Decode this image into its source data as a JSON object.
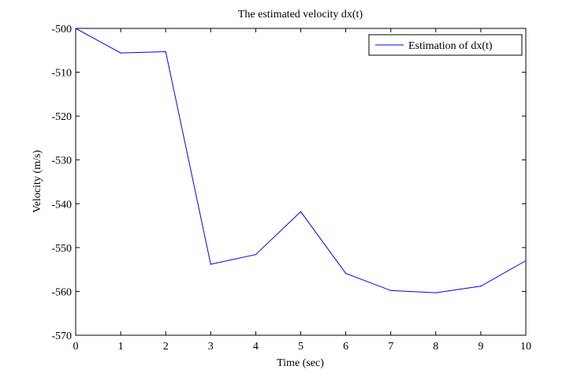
{
  "chart_data": {
    "type": "line",
    "title": "The estimated velocity dx(t)",
    "xlabel": "Time (sec)",
    "ylabel": "Velocity (m/s)",
    "xlim": [
      0,
      10
    ],
    "ylim": [
      -570,
      -500
    ],
    "xticks": [
      0,
      1,
      2,
      3,
      4,
      5,
      6,
      7,
      8,
      9,
      10
    ],
    "yticks": [
      -570,
      -560,
      -550,
      -540,
      -530,
      -520,
      -510,
      -500
    ],
    "grid": false,
    "legend_position": "top-right",
    "series": [
      {
        "name": "Estimation of  dx(t)",
        "color": "#0000ff",
        "x": [
          0,
          1,
          2,
          3,
          4,
          5,
          6,
          7,
          8,
          9,
          10
        ],
        "y": [
          -500.0,
          -505.6,
          -505.3,
          -553.8,
          -551.6,
          -541.8,
          -555.9,
          -559.8,
          -560.3,
          -558.8,
          -553.0
        ]
      }
    ]
  }
}
